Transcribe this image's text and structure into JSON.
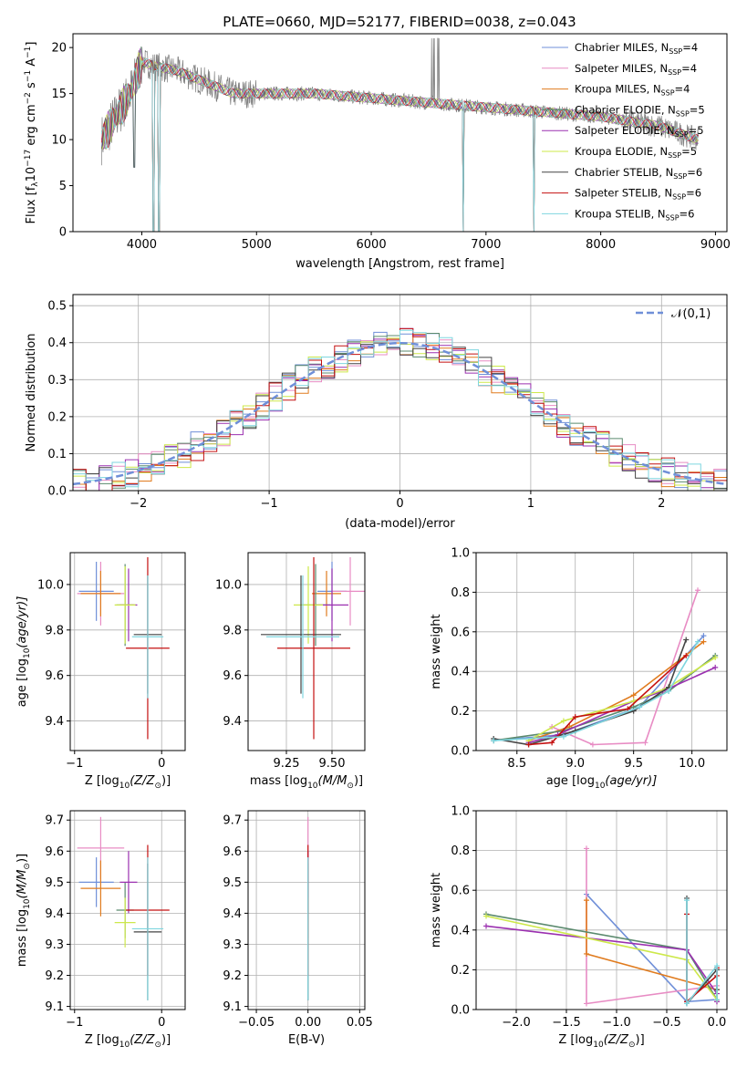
{
  "title": "PLATE=0660, MJD=52177, FIBERID=0038, z=0.043",
  "colors": {
    "Chabrier MILES": "#6f8fd8",
    "Salpeter MILES": "#e88cc4",
    "Kroupa MILES": "#e07b1e",
    "Chabrier ELODIE": "#5b8a6e",
    "Salpeter ELODIE": "#9b30b0",
    "Kroupa ELODIE": "#cde84a",
    "Chabrier STELIB": "#444444",
    "Salpeter STELIB": "#c41010",
    "Kroupa STELIB": "#7fd6df",
    "gaussian": "#6f8fd8",
    "data": "#808080"
  },
  "chart_data": [
    {
      "id": "spectrum",
      "type": "line",
      "title": "PLATE=0660, MJD=52177, FIBERID=0038, z=0.043",
      "xlabel": "wavelength [Angstrom, rest frame]",
      "ylabel_main": "Flux [f",
      "ylabel_sub1": "λ",
      "ylabel_mid": "10",
      "ylabel_sup1": "−17",
      "ylabel_rest": " erg cm",
      "ylabel_sup2": "−2",
      "ylabel_s": " s",
      "ylabel_sup3": "−1",
      "ylabel_a": " A",
      "ylabel_sup4": "−1",
      "ylabel_end": "]",
      "xlim": [
        3400,
        9100
      ],
      "ylim": [
        0,
        21.5
      ],
      "xticks": [
        4000,
        5000,
        6000,
        7000,
        8000,
        9000
      ],
      "yticks": [
        0,
        5,
        10,
        15,
        20
      ],
      "legend": "top-right",
      "legend_entries": [
        {
          "name": "Chabrier MILES, N",
          "sub": "SSP",
          "rest": "=4"
        },
        {
          "name": "Salpeter MILES, N",
          "sub": "SSP",
          "rest": "=4"
        },
        {
          "name": "Kroupa MILES, N",
          "sub": "SSP",
          "rest": "=4"
        },
        {
          "name": "Chabrier ELODIE, N",
          "sub": "SSP",
          "rest": "=5"
        },
        {
          "name": "Salpeter ELODIE, N",
          "sub": "SSP",
          "rest": "=5"
        },
        {
          "name": "Kroupa ELODIE, N",
          "sub": "SSP",
          "rest": "=5"
        },
        {
          "name": "Chabrier STELIB, N",
          "sub": "SSP",
          "rest": "=6"
        },
        {
          "name": "Salpeter STELIB, N",
          "sub": "SSP",
          "rest": "=6"
        },
        {
          "name": "Kroupa STELIB, N",
          "sub": "SSP",
          "rest": "=6"
        }
      ],
      "continuum": [
        [
          3650,
          10
        ],
        [
          3700,
          11
        ],
        [
          3800,
          13
        ],
        [
          3900,
          15
        ],
        [
          4000,
          18.5
        ],
        [
          4100,
          18
        ],
        [
          4300,
          17.5
        ],
        [
          4600,
          16
        ],
        [
          4800,
          15
        ],
        [
          5000,
          15
        ],
        [
          5500,
          15
        ],
        [
          6000,
          14.5
        ],
        [
          6500,
          14
        ],
        [
          7000,
          13.5
        ],
        [
          7500,
          13
        ],
        [
          8000,
          12.5
        ],
        [
          8500,
          11.5
        ],
        [
          8850,
          10
        ]
      ],
      "dips": [
        [
          3933,
          7
        ],
        [
          4102,
          0
        ],
        [
          4150,
          0
        ],
        [
          6800,
          0
        ],
        [
          7420,
          0
        ]
      ]
    },
    {
      "id": "residuals",
      "type": "histogram",
      "xlabel": "(data-model)/error",
      "ylabel": "Normed distribution",
      "xlim": [
        -2.5,
        2.5
      ],
      "ylim": [
        0,
        0.53
      ],
      "xticks": [
        -2,
        -1,
        0,
        1,
        2
      ],
      "yticks": [
        0.0,
        0.1,
        0.2,
        0.3,
        0.4,
        0.5
      ],
      "legend": "top-right",
      "gaussian_label": "𝒩(0,1)",
      "bin_width": 0.1
    },
    {
      "id": "age_vs_Z",
      "type": "errorbar",
      "xlabel": "Z [log",
      "xlabel_sub": "10",
      "xlabel_rest": "(Z/Z",
      "xlabel_end": ")]",
      "ylabel": "age  [log",
      "ylabel_sub": "10",
      "ylabel_rest": "(age/yr)]",
      "xlim": [
        -1.05,
        0.27
      ],
      "ylim": [
        9.27,
        10.14
      ],
      "xticks": [
        -1,
        0
      ],
      "yticks": [
        9.4,
        9.6,
        9.8,
        10.0
      ],
      "points": [
        {
          "series": "Chabrier MILES",
          "x": -0.75,
          "y": 9.97,
          "xerr": 0.2,
          "yerr": 0.13
        },
        {
          "series": "Salpeter MILES",
          "x": -0.7,
          "y": 9.96,
          "xerr": 0.27,
          "yerr": 0.14
        },
        {
          "series": "Kroupa MILES",
          "x": -0.7,
          "y": 9.96,
          "xerr": 0.23,
          "yerr": 0.1
        },
        {
          "series": "Chabrier ELODIE",
          "x": -0.42,
          "y": 9.91,
          "xerr": 0.1,
          "yerr": 0.18
        },
        {
          "series": "Salpeter ELODIE",
          "x": -0.38,
          "y": 9.91,
          "xerr": 0.1,
          "yerr": 0.16
        },
        {
          "series": "Kroupa ELODIE",
          "x": -0.42,
          "y": 9.91,
          "xerr": 0.12,
          "yerr": 0.17
        },
        {
          "series": "Chabrier STELIB",
          "x": -0.16,
          "y": 9.78,
          "xerr": 0.16,
          "yerr": 0.26
        },
        {
          "series": "Salpeter STELIB",
          "x": -0.16,
          "y": 9.72,
          "xerr": 0.25,
          "yerr": 0.4
        },
        {
          "series": "Kroupa STELIB",
          "x": -0.16,
          "y": 9.77,
          "xerr": 0.18,
          "yerr": 0.27
        }
      ]
    },
    {
      "id": "age_vs_mass",
      "type": "errorbar",
      "xlabel": "mass [log",
      "xlabel_sub": "10",
      "xlabel_rest": "(M/M",
      "xlabel_end": ")]",
      "xlim": [
        9.04,
        9.68
      ],
      "ylim": [
        9.27,
        10.14
      ],
      "xticks": [
        9.25,
        9.5
      ],
      "xticklabels": [
        "9.25",
        "9.50"
      ],
      "yticks": [
        9.4,
        9.6,
        9.8,
        10.0
      ],
      "points": [
        {
          "series": "Chabrier MILES",
          "x": 9.5,
          "y": 9.97,
          "xerr": 0.08,
          "yerr": 0.13
        },
        {
          "series": "Salpeter MILES",
          "x": 9.6,
          "y": 9.97,
          "xerr": 0.1,
          "yerr": 0.15
        },
        {
          "series": "Kroupa MILES",
          "x": 9.47,
          "y": 9.96,
          "xerr": 0.08,
          "yerr": 0.1
        },
        {
          "series": "Chabrier ELODIE",
          "x": 9.41,
          "y": 9.91,
          "xerr": 0.08,
          "yerr": 0.18
        },
        {
          "series": "Salpeter ELODIE",
          "x": 9.5,
          "y": 9.91,
          "xerr": 0.09,
          "yerr": 0.16
        },
        {
          "series": "Kroupa ELODIE",
          "x": 9.37,
          "y": 9.91,
          "xerr": 0.08,
          "yerr": 0.17
        },
        {
          "series": "Chabrier STELIB",
          "x": 9.33,
          "y": 9.78,
          "xerr": 0.22,
          "yerr": 0.26
        },
        {
          "series": "Salpeter STELIB",
          "x": 9.4,
          "y": 9.72,
          "xerr": 0.2,
          "yerr": 0.4
        },
        {
          "series": "Kroupa STELIB",
          "x": 9.34,
          "y": 9.77,
          "xerr": 0.2,
          "yerr": 0.27
        }
      ]
    },
    {
      "id": "weight_vs_age",
      "type": "line",
      "xlabel": "age  [log",
      "xlabel_sub": "10",
      "xlabel_rest": "(age/yr)]",
      "ylabel": "mass weight",
      "xlim": [
        8.15,
        10.3
      ],
      "ylim": [
        0,
        1
      ],
      "xticks": [
        8.5,
        9.0,
        9.5,
        10.0
      ],
      "xticklabels": [
        "8.5",
        "9.0",
        "9.5",
        "10.0"
      ],
      "yticks": [
        0.0,
        0.2,
        0.4,
        0.6,
        0.8,
        1.0
      ],
      "series": [
        {
          "name": "Chabrier MILES",
          "x": [
            8.3,
            8.9,
            9.55,
            10.1
          ],
          "y": [
            0.05,
            0.08,
            0.22,
            0.58
          ]
        },
        {
          "name": "Salpeter MILES",
          "x": [
            8.8,
            9.15,
            9.6,
            10.05
          ],
          "y": [
            0.12,
            0.03,
            0.04,
            0.81
          ]
        },
        {
          "name": "Kroupa MILES",
          "x": [
            8.6,
            8.95,
            9.5,
            10.1
          ],
          "y": [
            0.05,
            0.12,
            0.28,
            0.55
          ]
        },
        {
          "name": "Chabrier ELODIE",
          "x": [
            8.3,
            8.9,
            9.5,
            9.8,
            10.2
          ],
          "y": [
            0.05,
            0.1,
            0.22,
            0.3,
            0.48
          ]
        },
        {
          "name": "Salpeter ELODIE",
          "x": [
            8.6,
            8.85,
            9.5,
            9.75,
            10.2
          ],
          "y": [
            0.04,
            0.08,
            0.25,
            0.3,
            0.42
          ]
        },
        {
          "name": "Kroupa ELODIE",
          "x": [
            8.6,
            8.9,
            9.5,
            9.8,
            10.2
          ],
          "y": [
            0.05,
            0.15,
            0.25,
            0.32,
            0.47
          ]
        },
        {
          "name": "Chabrier STELIB",
          "x": [
            8.3,
            8.6,
            9.0,
            9.5,
            9.8,
            9.95
          ],
          "y": [
            0.06,
            0.03,
            0.1,
            0.2,
            0.32,
            0.56
          ]
        },
        {
          "name": "Salpeter STELIB",
          "x": [
            8.6,
            8.8,
            9.0,
            9.45,
            9.95
          ],
          "y": [
            0.03,
            0.04,
            0.17,
            0.21,
            0.48
          ]
        },
        {
          "name": "Kroupa STELIB",
          "x": [
            8.3,
            8.9,
            9.55,
            9.8,
            10.05
          ],
          "y": [
            0.05,
            0.07,
            0.22,
            0.3,
            0.55
          ]
        }
      ]
    },
    {
      "id": "mass_vs_Z",
      "type": "errorbar",
      "xlabel": "Z [log",
      "xlabel_sub": "10",
      "xlabel_rest": "(Z/Z",
      "xlabel_end": ")]",
      "ylabel": "mass [log",
      "ylabel_sub": "10",
      "ylabel_rest": "(M/M",
      "ylabel_end": ")]",
      "xlim": [
        -1.05,
        0.27
      ],
      "ylim": [
        9.09,
        9.73
      ],
      "xticks": [
        -1,
        0
      ],
      "yticks": [
        9.1,
        9.2,
        9.3,
        9.4,
        9.5,
        9.6,
        9.7
      ],
      "points": [
        {
          "series": "Chabrier MILES",
          "x": -0.75,
          "y": 9.5,
          "xerr": 0.2,
          "yerr": 0.08
        },
        {
          "series": "Salpeter MILES",
          "x": -0.7,
          "y": 9.61,
          "xerr": 0.27,
          "yerr": 0.1
        },
        {
          "series": "Kroupa MILES",
          "x": -0.7,
          "y": 9.48,
          "xerr": 0.23,
          "yerr": 0.09
        },
        {
          "series": "Chabrier ELODIE",
          "x": -0.42,
          "y": 9.41,
          "xerr": 0.1,
          "yerr": 0.09
        },
        {
          "series": "Salpeter ELODIE",
          "x": -0.38,
          "y": 9.5,
          "xerr": 0.1,
          "yerr": 0.1
        },
        {
          "series": "Kroupa ELODIE",
          "x": -0.42,
          "y": 9.37,
          "xerr": 0.12,
          "yerr": 0.08
        },
        {
          "series": "Chabrier STELIB",
          "x": -0.16,
          "y": 9.34,
          "xerr": 0.16,
          "yerr": 0.22
        },
        {
          "series": "Salpeter STELIB",
          "x": -0.16,
          "y": 9.41,
          "xerr": 0.25,
          "yerr": 0.21
        },
        {
          "series": "Kroupa STELIB",
          "x": -0.16,
          "y": 9.35,
          "xerr": 0.18,
          "yerr": 0.23
        }
      ]
    },
    {
      "id": "mass_vs_ebv",
      "type": "errorbar",
      "xlabel": "E(B-V)",
      "xlim": [
        -0.058,
        0.055
      ],
      "ylim": [
        9.09,
        9.73
      ],
      "xticks": [
        -0.05,
        0.0,
        0.05
      ],
      "xticklabels": [
        "−0.05",
        "0.00",
        "0.05"
      ],
      "yticks": [
        9.1,
        9.2,
        9.3,
        9.4,
        9.5,
        9.6,
        9.7
      ],
      "points": [
        {
          "series": "Chabrier MILES",
          "x": 0.0,
          "y": 9.5,
          "xerr": 0.0,
          "yerr": 0.08
        },
        {
          "series": "Salpeter MILES",
          "x": 0.0,
          "y": 9.61,
          "xerr": 0.0,
          "yerr": 0.1
        },
        {
          "series": "Kroupa MILES",
          "x": 0.0,
          "y": 9.48,
          "xerr": 0.0,
          "yerr": 0.09
        },
        {
          "series": "Chabrier ELODIE",
          "x": 0.0,
          "y": 9.41,
          "xerr": 0.0,
          "yerr": 0.09
        },
        {
          "series": "Salpeter ELODIE",
          "x": 0.0,
          "y": 9.5,
          "xerr": 0.0,
          "yerr": 0.1
        },
        {
          "series": "Kroupa ELODIE",
          "x": 0.0,
          "y": 9.37,
          "xerr": 0.0,
          "yerr": 0.08
        },
        {
          "series": "Chabrier STELIB",
          "x": 0.0,
          "y": 9.34,
          "xerr": 0.0,
          "yerr": 0.22
        },
        {
          "series": "Salpeter STELIB",
          "x": 0.0,
          "y": 9.41,
          "xerr": 0.0,
          "yerr": 0.21
        },
        {
          "series": "Kroupa STELIB",
          "x": 0.0,
          "y": 9.35,
          "xerr": 0.0,
          "yerr": 0.23
        }
      ]
    },
    {
      "id": "weight_vs_Z",
      "type": "line",
      "xlabel": "Z [log",
      "xlabel_sub": "10",
      "xlabel_rest": "(Z/Z",
      "xlabel_end": ")]",
      "ylabel": "mass weight",
      "xlim": [
        -2.4,
        0.1
      ],
      "ylim": [
        0,
        1
      ],
      "xticks": [
        -2.0,
        -1.5,
        -1.0,
        -0.5,
        0.0
      ],
      "xticklabels": [
        "−2.0",
        "−1.5",
        "−1.0",
        "−0.5",
        "0.0"
      ],
      "yticks": [
        0.0,
        0.2,
        0.4,
        0.6,
        0.8,
        1.0
      ],
      "series": [
        {
          "name": "Chabrier MILES",
          "x": [
            -1.3,
            -0.3,
            0.0
          ],
          "y": [
            0.58,
            0.04,
            0.05
          ]
        },
        {
          "name": "Salpeter MILES",
          "x": [
            -1.3,
            -1.3,
            0.0,
            0.0
          ],
          "y": [
            0.81,
            0.03,
            0.12,
            0.04
          ]
        },
        {
          "name": "Kroupa MILES",
          "x": [
            -1.3,
            -1.3,
            0.0,
            0.0
          ],
          "y": [
            0.55,
            0.28,
            0.1,
            0.05
          ]
        },
        {
          "name": "Chabrier ELODIE",
          "x": [
            -2.3,
            -0.3,
            0.0,
            0.0
          ],
          "y": [
            0.48,
            0.3,
            0.05,
            0.1
          ]
        },
        {
          "name": "Salpeter ELODIE",
          "x": [
            -2.3,
            -0.3,
            0.0,
            0.0
          ],
          "y": [
            0.42,
            0.3,
            0.08,
            0.04
          ]
        },
        {
          "name": "Kroupa ELODIE",
          "x": [
            -2.3,
            -0.3,
            0.0,
            0.0
          ],
          "y": [
            0.47,
            0.25,
            0.05,
            0.1
          ]
        },
        {
          "name": "Chabrier STELIB",
          "x": [
            -0.3,
            -0.3,
            0.0,
            0.0
          ],
          "y": [
            0.56,
            0.03,
            0.2,
            0.1
          ]
        },
        {
          "name": "Salpeter STELIB",
          "x": [
            -0.3,
            -0.3,
            0.0,
            0.0
          ],
          "y": [
            0.48,
            0.04,
            0.17,
            0.21
          ]
        },
        {
          "name": "Kroupa STELIB",
          "x": [
            -0.3,
            -0.3,
            0.0,
            0.0
          ],
          "y": [
            0.55,
            0.03,
            0.22,
            0.05
          ]
        }
      ]
    }
  ]
}
